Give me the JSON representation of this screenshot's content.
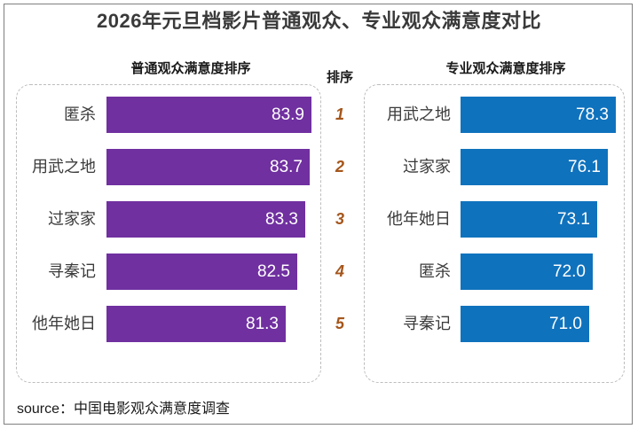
{
  "title": "2026年元旦档影片普通观众、专业观众满意度对比",
  "colors": {
    "general": "#7030a0",
    "professional": "#0f72bd",
    "rank": "#a5561b"
  },
  "rank_header": "排序",
  "source": "source：中国电影观众满意度调查",
  "chart_data": [
    {
      "type": "bar",
      "orientation": "horizontal",
      "title": "普通观众满意度排序",
      "categories": [
        "匿杀",
        "用武之地",
        "过家家",
        "寻秦记",
        "他年她日"
      ],
      "values": [
        "83.9",
        "83.7",
        "83.3",
        "82.5",
        "81.3"
      ],
      "ranks": [
        "1",
        "2",
        "3",
        "4",
        "5"
      ],
      "color": "#7030a0"
    },
    {
      "type": "bar",
      "orientation": "horizontal",
      "title": "专业观众满意度排序",
      "categories": [
        "用武之地",
        "过家家",
        "他年她日",
        "匿杀",
        "寻秦记"
      ],
      "values": [
        "78.3",
        "76.1",
        "73.1",
        "72.0",
        "71.0"
      ],
      "color": "#0f72bd"
    }
  ]
}
